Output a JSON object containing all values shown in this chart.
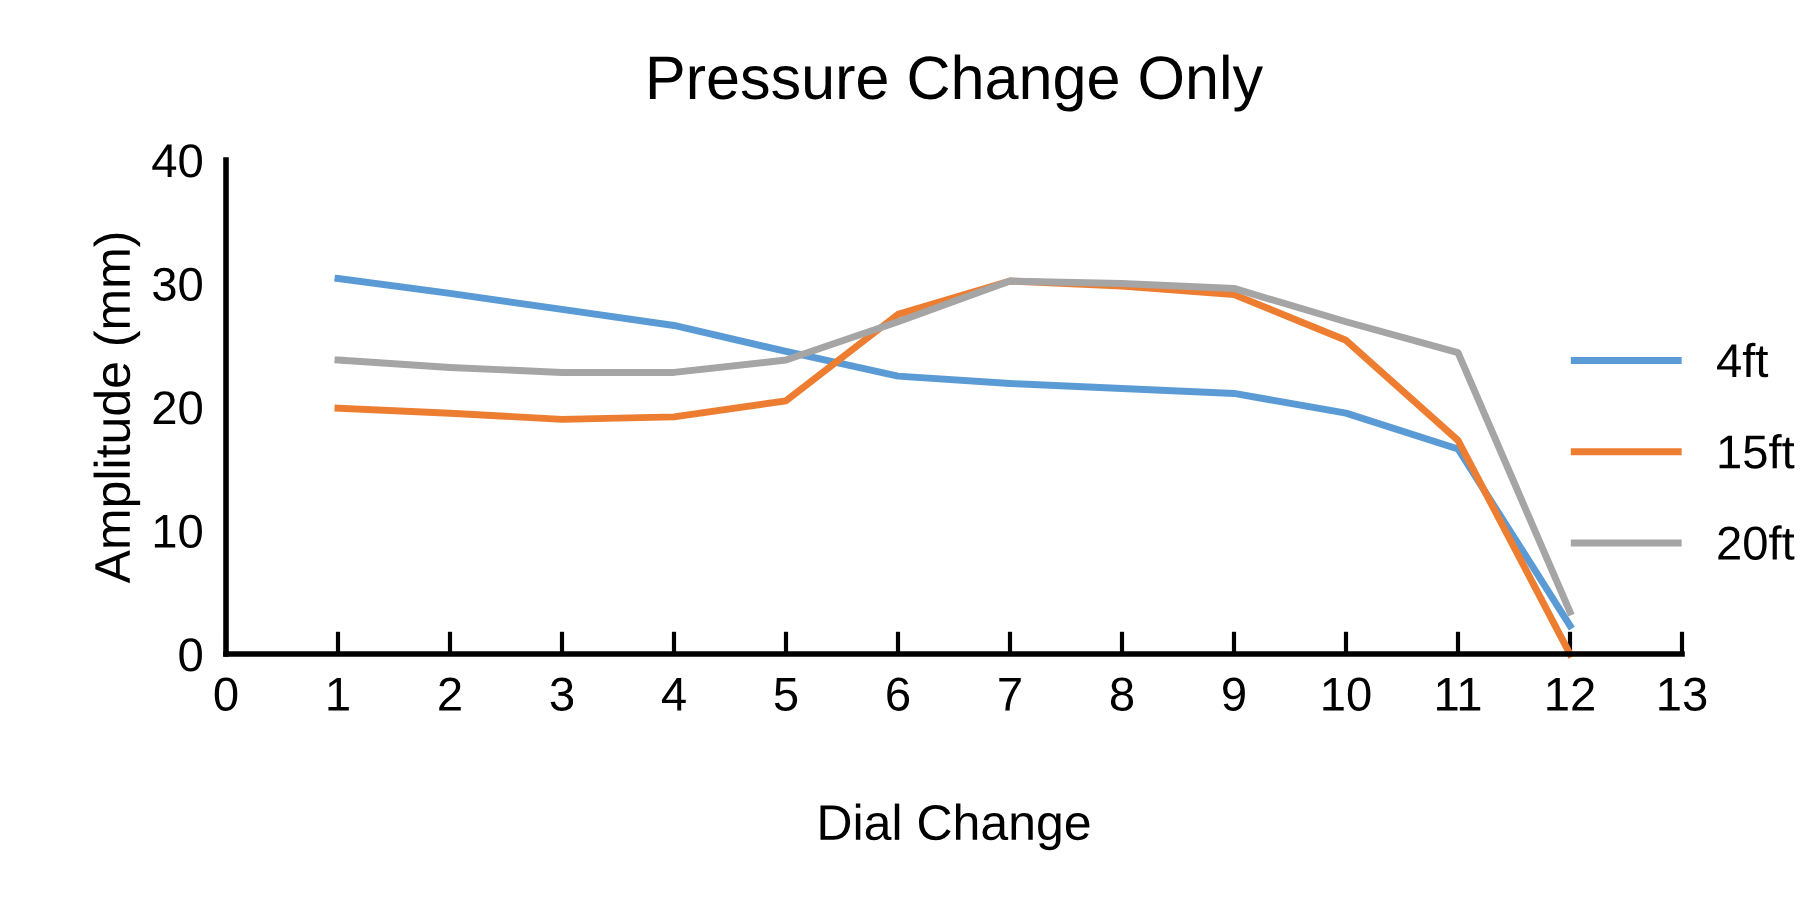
{
  "chart_data": {
    "type": "line",
    "title": "Pressure Change Only",
    "xlabel": "Dial Change",
    "ylabel": "Amplitude (mm)",
    "x": [
      1,
      2,
      3,
      4,
      5,
      6,
      7,
      8,
      9,
      10,
      11,
      12
    ],
    "series": [
      {
        "name": "4ft",
        "color": "#5b9bd5",
        "values": [
          30.4,
          29.2,
          27.9,
          26.6,
          24.5,
          22.5,
          21.9,
          21.5,
          21.1,
          19.5,
          16.6,
          2.3
        ]
      },
      {
        "name": "15ft",
        "color": "#ed7d31",
        "values": [
          19.9,
          19.5,
          19.0,
          19.2,
          20.5,
          27.5,
          30.2,
          29.8,
          29.1,
          25.4,
          17.3,
          0
        ]
      },
      {
        "name": "20ft",
        "color": "#a5a5a5",
        "values": [
          23.8,
          23.2,
          22.8,
          22.8,
          23.8,
          26.9,
          30.2,
          30.0,
          29.6,
          26.9,
          24.4,
          3.4
        ]
      }
    ],
    "xlim": [
      0,
      13
    ],
    "xticks": [
      0,
      1,
      2,
      3,
      4,
      5,
      6,
      7,
      8,
      9,
      10,
      11,
      12,
      13
    ],
    "ylim": [
      0,
      40
    ],
    "yticks": [
      0,
      10,
      20,
      30,
      40
    ],
    "grid": false,
    "legend": "right",
    "marker": "none",
    "line_style": "solid"
  }
}
